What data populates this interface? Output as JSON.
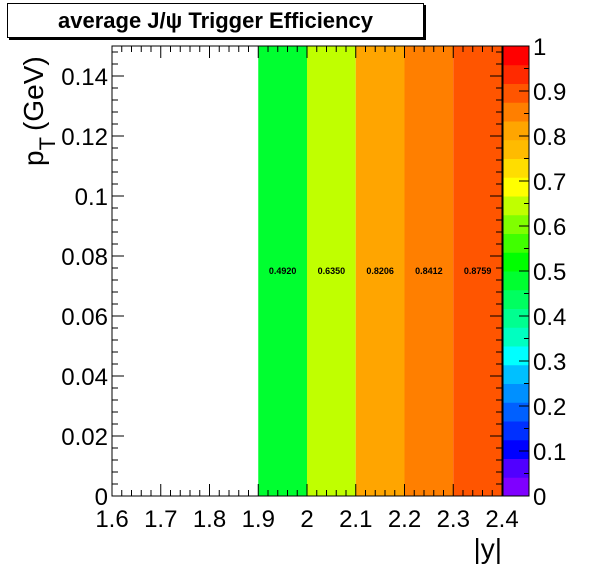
{
  "chart_data": {
    "type": "heatmap",
    "title": "average J/ψ Trigger Efficiency",
    "xlabel": "|y|",
    "ylabel": "p",
    "ylabel_sub": "T",
    "ylabel_unit": "(GeV)",
    "xlim": [
      1.6,
      2.4
    ],
    "ylim": [
      0,
      0.15
    ],
    "zlim": [
      0,
      1
    ],
    "x_ticks": [
      "1.6",
      "1.7",
      "1.8",
      "1.9",
      "2",
      "2.1",
      "2.2",
      "2.3",
      "2.4"
    ],
    "y_ticks": [
      "0",
      "0.02",
      "0.04",
      "0.06",
      "0.08",
      "0.1",
      "0.12",
      "0.14"
    ],
    "z_ticks": [
      "0",
      "0.1",
      "0.2",
      "0.3",
      "0.4",
      "0.5",
      "0.6",
      "0.7",
      "0.8",
      "0.9",
      "1"
    ],
    "cells": [
      {
        "x0": 1.9,
        "x1": 2.0,
        "y0": 0,
        "y1": 0.15,
        "value": 0.492,
        "label": "0.4920"
      },
      {
        "x0": 2.0,
        "x1": 2.1,
        "y0": 0,
        "y1": 0.15,
        "value": 0.635,
        "label": "0.6350"
      },
      {
        "x0": 2.1,
        "x1": 2.2,
        "y0": 0,
        "y1": 0.15,
        "value": 0.8206,
        "label": "0.8206"
      },
      {
        "x0": 2.2,
        "x1": 2.3,
        "y0": 0,
        "y1": 0.15,
        "value": 0.8412,
        "label": "0.8412"
      },
      {
        "x0": 2.3,
        "x1": 2.4,
        "y0": 0,
        "y1": 0.15,
        "value": 0.8759,
        "label": "0.8759"
      }
    ],
    "palette": [
      "#7f00ff",
      "#5000ff",
      "#0000ff",
      "#0030ff",
      "#0060ff",
      "#0090ff",
      "#00c0ff",
      "#00ffff",
      "#00ffc0",
      "#00ff90",
      "#00ff60",
      "#00ff30",
      "#00ff00",
      "#40ff00",
      "#80ff00",
      "#c0ff00",
      "#ffff00",
      "#ffdd00",
      "#ffbb00",
      "#ffa500",
      "#ff7f00",
      "#ff5500",
      "#ff2a00",
      "#ff0000"
    ],
    "grid": false
  }
}
